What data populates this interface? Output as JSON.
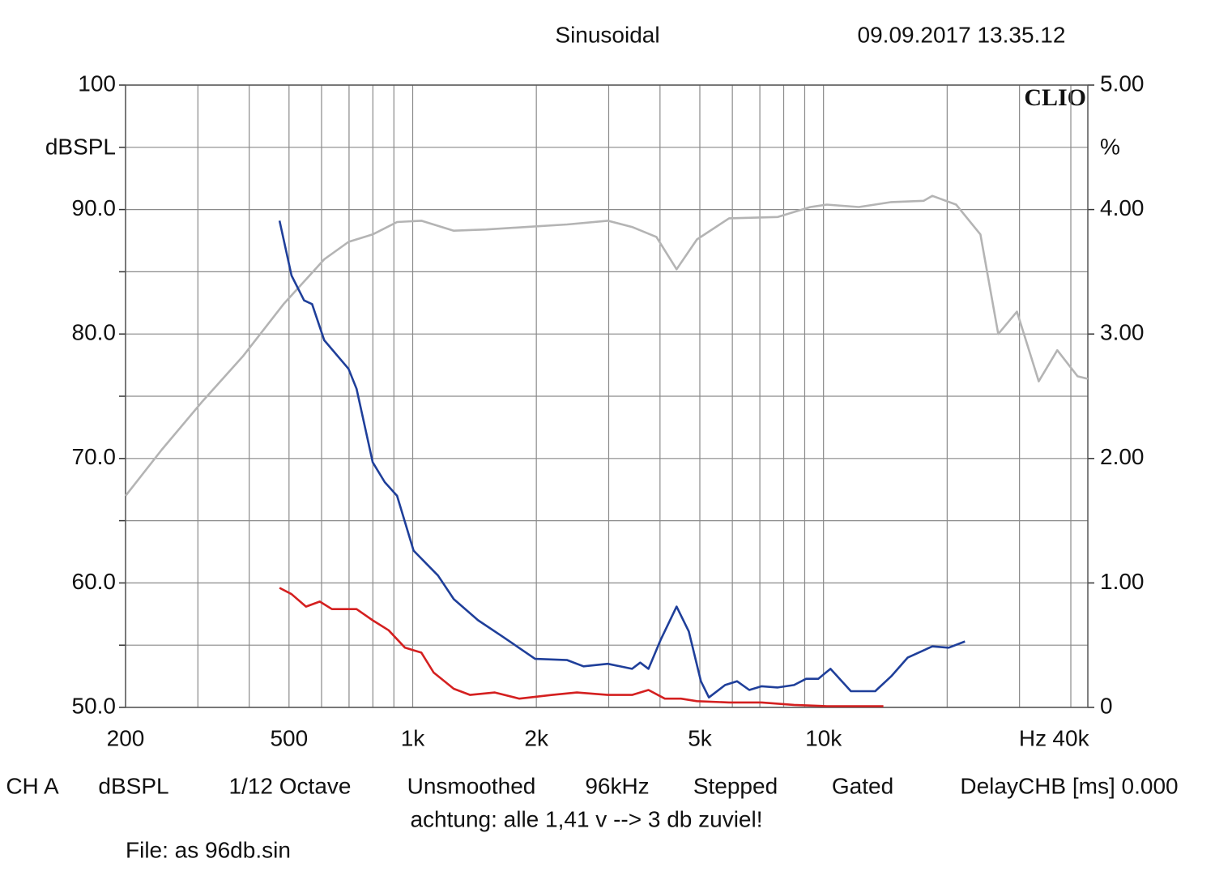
{
  "chart_data": {
    "type": "line",
    "title": "Sinusoidal",
    "date": "09.09.2017 13.35.12",
    "logo": "CLIO",
    "ylabel": "dBSPL",
    "y2label": "%",
    "xlabel": "Hz",
    "xscale": "log",
    "grid": true,
    "xlim": [
      200,
      44000
    ],
    "xticks": [
      200,
      500,
      {
        "value": 1000,
        "label": "1k"
      },
      {
        "value": 2000,
        "label": "2k"
      },
      {
        "value": 5000,
        "label": "5k"
      },
      {
        "value": 10000,
        "label": "10k"
      },
      {
        "value": 40000,
        "label": "40k"
      }
    ],
    "xminor": [
      300,
      400,
      600,
      700,
      800,
      900,
      3000,
      4000,
      6000,
      7000,
      8000,
      9000,
      20000,
      30000
    ],
    "ylim": [
      50,
      100
    ],
    "yticks": [
      {
        "value": 50,
        "label": "50.0"
      },
      {
        "value": 60,
        "label": "60.0"
      },
      {
        "value": 70,
        "label": "70.0"
      },
      {
        "value": 80,
        "label": "80.0"
      },
      {
        "value": 90,
        "label": "90.0"
      },
      100
    ],
    "yminor": [
      55,
      65,
      75,
      85,
      95
    ],
    "y2lim": [
      0,
      5
    ],
    "y2ticks": [
      0,
      {
        "value": 1,
        "label": "1.00"
      },
      {
        "value": 2,
        "label": "2.00"
      },
      {
        "value": 3,
        "label": "3.00"
      },
      {
        "value": 4,
        "label": "4.00"
      },
      {
        "value": 5,
        "label": "5.00"
      }
    ],
    "series": [
      {
        "color": "#b4b4b4",
        "axis": "y",
        "x": [
          200,
          245,
          308,
          386,
          485,
          609,
          698,
          799,
          916,
          1050,
          1259,
          1510,
          1894,
          2377,
          2985,
          3420,
          3920,
          4390,
          4920,
          5890,
          7740,
          9290,
          10180,
          12190,
          14620,
          17540,
          18400,
          21030,
          24100,
          26630,
          29580,
          33420,
          37080,
          41560,
          44000
        ],
        "values": [
          67.0,
          70.7,
          74.6,
          78.2,
          82.4,
          86.0,
          87.4,
          88.0,
          89.0,
          89.1,
          88.3,
          88.4,
          88.6,
          88.8,
          89.1,
          88.6,
          87.8,
          85.2,
          87.6,
          89.3,
          89.4,
          90.2,
          90.4,
          90.2,
          90.6,
          90.7,
          91.1,
          90.4,
          88.0,
          80.0,
          81.8,
          76.2,
          78.7,
          76.6,
          76.4
        ]
      },
      {
        "color": "#1f3f9a",
        "axis": "y2",
        "x": [
          474,
          507,
          544,
          569,
          609,
          698,
          730,
          799,
          855,
          916,
          1005,
          1076,
          1152,
          1259,
          1443,
          1653,
          1986,
          2377,
          2605,
          2985,
          3420,
          3580,
          3750,
          4010,
          4390,
          4700,
          5030,
          5260,
          5760,
          6160,
          6600,
          7070,
          7740,
          8480,
          9070,
          9710,
          10400,
          11660,
          13360,
          14620,
          16020,
          18400,
          20170,
          22100
        ],
        "values": [
          3.91,
          3.47,
          3.27,
          3.24,
          2.95,
          2.72,
          2.56,
          1.97,
          1.81,
          1.7,
          1.26,
          1.16,
          1.06,
          0.87,
          0.7,
          0.57,
          0.39,
          0.38,
          0.33,
          0.35,
          0.31,
          0.36,
          0.31,
          0.54,
          0.81,
          0.61,
          0.21,
          0.08,
          0.18,
          0.21,
          0.14,
          0.17,
          0.16,
          0.18,
          0.23,
          0.23,
          0.31,
          0.13,
          0.13,
          0.25,
          0.4,
          0.49,
          0.48,
          0.53
        ]
      },
      {
        "color": "#d42020",
        "axis": "y2",
        "x": [
          474,
          507,
          550,
          594,
          636,
          730,
          799,
          874,
          958,
          1050,
          1125,
          1259,
          1380,
          1585,
          1818,
          2185,
          2510,
          2985,
          3420,
          3750,
          4110,
          4500,
          4920,
          5890,
          7070,
          8480,
          10180,
          12190,
          13990
        ],
        "values": [
          0.96,
          0.91,
          0.81,
          0.85,
          0.79,
          0.79,
          0.7,
          0.62,
          0.48,
          0.44,
          0.28,
          0.15,
          0.1,
          0.12,
          0.07,
          0.1,
          0.12,
          0.1,
          0.1,
          0.14,
          0.07,
          0.07,
          0.05,
          0.04,
          0.04,
          0.02,
          0.01,
          0.01,
          0.01
        ]
      }
    ]
  },
  "footer": {
    "settings": [
      "CH A",
      "dBSPL",
      "1/12 Octave",
      "Unsmoothed",
      "96kHz",
      "Stepped",
      "Gated",
      "DelayCHB [ms] 0.000"
    ],
    "note": "achtung: alle 1,41 v --> 3 db zuviel!",
    "file": "File: as 96db.sin"
  }
}
